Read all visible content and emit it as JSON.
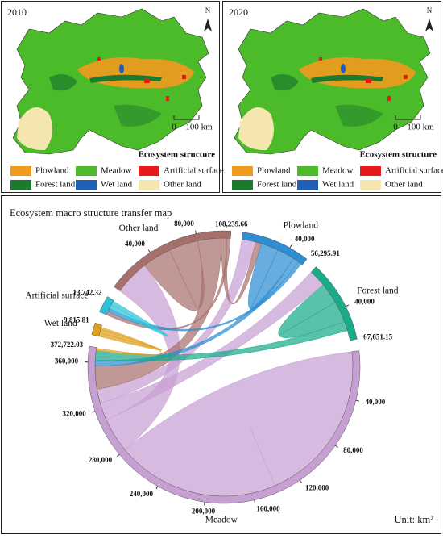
{
  "maps": {
    "panels": [
      {
        "year": "2010"
      },
      {
        "year": "2020"
      }
    ],
    "north": "N",
    "scale": [
      "0",
      "100 km"
    ],
    "legend_title": "Ecosystem structure",
    "legend": [
      {
        "name": "Plowland",
        "color": "#f39a1e"
      },
      {
        "name": "Meadow",
        "color": "#4cbb2a"
      },
      {
        "name": "Artificial surface",
        "color": "#e8191c"
      },
      {
        "name": "Forest land",
        "color": "#1a7a2e"
      },
      {
        "name": "Wet land",
        "color": "#1f5fb5"
      },
      {
        "name": "Other land",
        "color": "#f5e6b0"
      }
    ]
  },
  "chart_data": {
    "type": "chord",
    "title": "Ecosystem macro structure transfer map",
    "unit": "Unit: km²",
    "groups": [
      {
        "name": "Plowland",
        "color": "#2e8dd3",
        "total": 56295.91,
        "total_label": "56,295.91",
        "ticks": [
          {
            "value": 40000,
            "label": "40,000"
          }
        ]
      },
      {
        "name": "Forest land",
        "color": "#1aab8a",
        "total": 67651.15,
        "total_label": "67,651.15",
        "ticks": [
          {
            "value": 40000,
            "label": "40,000"
          }
        ]
      },
      {
        "name": "Meadow",
        "color": "#c6a0d2",
        "total": 372722.03,
        "total_label": "372,722.03",
        "ticks": [
          {
            "value": 40000,
            "label": "40,000"
          },
          {
            "value": 80000,
            "label": "80,000"
          },
          {
            "value": 120000,
            "label": "120,000"
          },
          {
            "value": 160000,
            "label": "160,000"
          },
          {
            "value": 200000,
            "label": "200,000"
          },
          {
            "value": 240000,
            "label": "240,000"
          },
          {
            "value": 280000,
            "label": "280,000"
          },
          {
            "value": 320000,
            "label": "320,000"
          },
          {
            "value": 360000,
            "label": "360,000"
          }
        ]
      },
      {
        "name": "Wet land",
        "color": "#e0a020",
        "total": 9815.81,
        "total_label": "9,815.81",
        "ticks": []
      },
      {
        "name": "Artificial surface",
        "color": "#2cc3da",
        "total": 13742.32,
        "total_label": "13,742.32",
        "ticks": []
      },
      {
        "name": "Other land",
        "color": "#a8706c",
        "total": 108239.66,
        "total_label": "108,239.66",
        "ticks": [
          {
            "value": 40000,
            "label": "40,000"
          },
          {
            "value": 80000,
            "label": "80,000"
          }
        ]
      }
    ],
    "links": [
      {
        "from": "Meadow",
        "to": "Meadow",
        "value": 140000
      },
      {
        "from": "Meadow",
        "to": "Other land",
        "value": 30000
      },
      {
        "from": "Meadow",
        "to": "Forest land",
        "value": 15000
      },
      {
        "from": "Meadow",
        "to": "Plowland",
        "value": 12000
      },
      {
        "from": "Other land",
        "to": "Other land",
        "value": 25000
      },
      {
        "from": "Other land",
        "to": "Meadow",
        "value": 20000
      },
      {
        "from": "Other land",
        "to": "Plowland",
        "value": 5000
      },
      {
        "from": "Other land",
        "to": "Artificial surface",
        "value": 3000
      },
      {
        "from": "Plowland",
        "to": "Plowland",
        "value": 15000
      },
      {
        "from": "Plowland",
        "to": "Meadow",
        "value": 5000
      },
      {
        "from": "Plowland",
        "to": "Artificial surface",
        "value": 3000
      },
      {
        "from": "Forest land",
        "to": "Forest land",
        "value": 18000
      },
      {
        "from": "Forest land",
        "to": "Meadow",
        "value": 8000
      },
      {
        "from": "Wet land",
        "to": "Wet land",
        "value": 3000
      },
      {
        "from": "Wet land",
        "to": "Meadow",
        "value": 2000
      },
      {
        "from": "Artificial surface",
        "to": "Artificial surface",
        "value": 3500
      }
    ]
  }
}
